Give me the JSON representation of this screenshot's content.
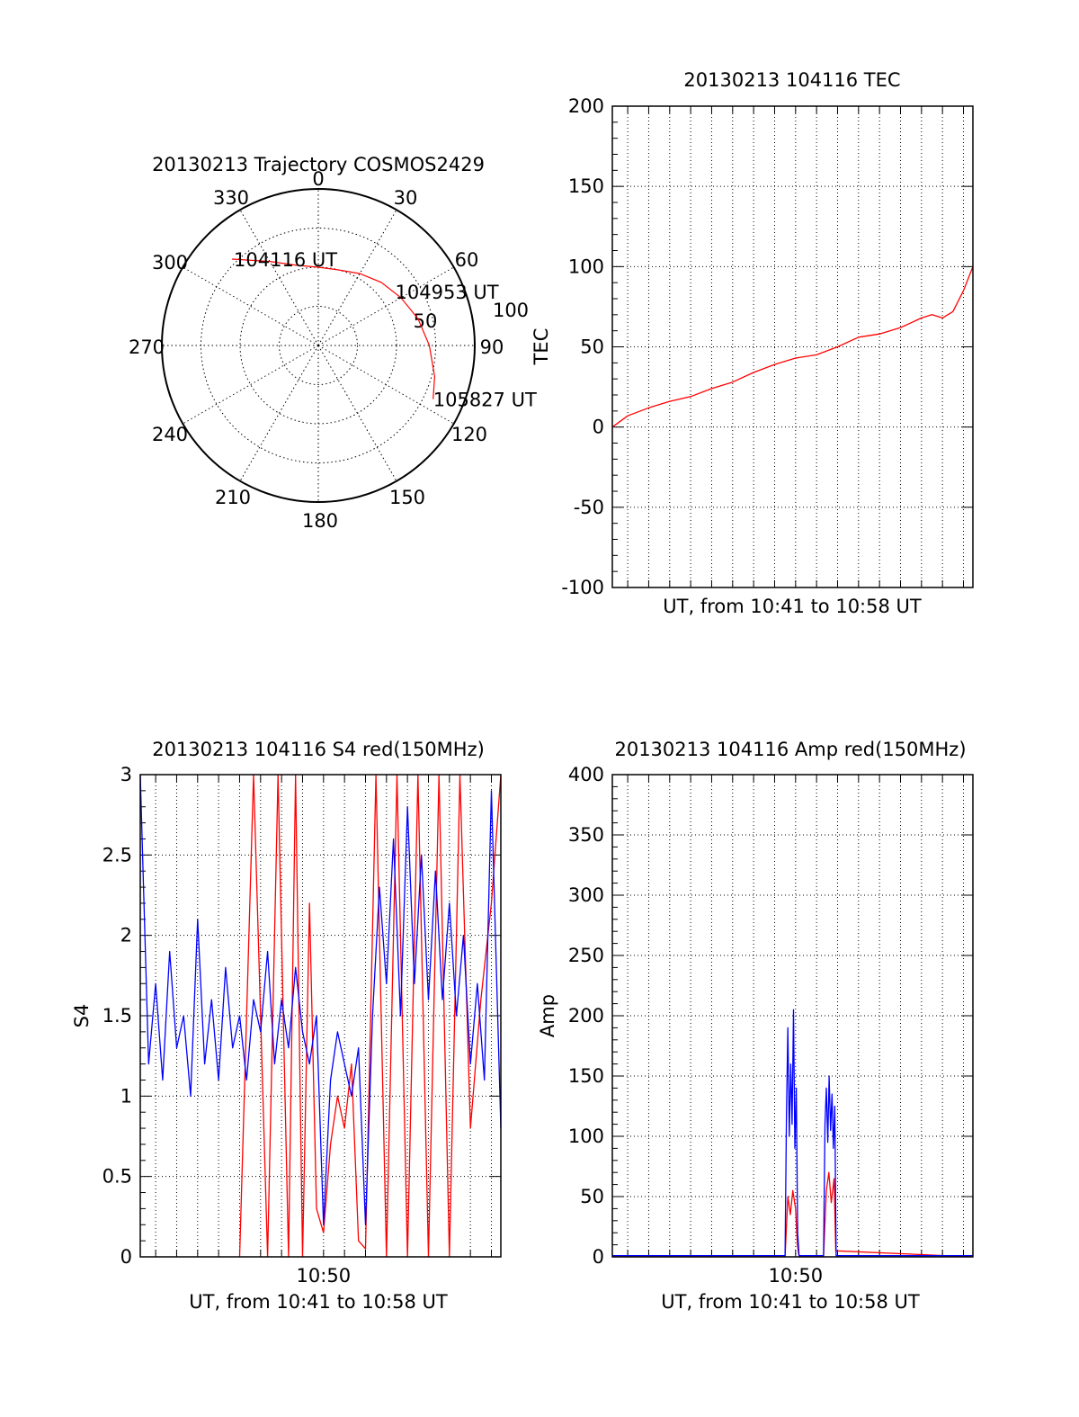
{
  "colors": {
    "red": "#ff0000",
    "blue": "#0000ff",
    "axis": "#000000",
    "grid": "#000000"
  },
  "chart_data": [
    {
      "id": "trajectory",
      "type": "polar",
      "title": "20130213 Trajectory COSMOS2429",
      "angle_labels": [
        "0",
        "30",
        "60",
        "90",
        "120",
        "150",
        "180",
        "210",
        "240",
        "270",
        "300",
        "330"
      ],
      "radius_labels": [
        "50",
        "100"
      ],
      "rlim": [
        0,
        100
      ],
      "grid": true,
      "track": {
        "color": "red",
        "points": [
          {
            "az": 315,
            "r": 78
          },
          {
            "az": 330,
            "r": 62
          },
          {
            "az": 345,
            "r": 53
          },
          {
            "az": 0,
            "r": 50
          },
          {
            "az": 15,
            "r": 50
          },
          {
            "az": 30,
            "r": 53
          },
          {
            "az": 45,
            "r": 57
          },
          {
            "az": 60,
            "r": 61
          },
          {
            "az": 75,
            "r": 66
          },
          {
            "az": 90,
            "r": 71
          },
          {
            "az": 105,
            "r": 77
          },
          {
            "az": 115,
            "r": 81
          }
        ]
      },
      "annotations": [
        {
          "text": "104116 UT",
          "az": 315,
          "r": 78
        },
        {
          "text": "104953 UT",
          "az": 55,
          "r": 60
        },
        {
          "text": "105827 UT",
          "az": 115,
          "r": 81
        }
      ]
    },
    {
      "id": "tec",
      "type": "line",
      "title": "20130213 104116 TEC",
      "xlabel": "UT, from 10:41 to 10:58 UT",
      "ylabel": "TEC",
      "ylim": [
        -100,
        200
      ],
      "yticks": [
        "-100",
        "-50",
        "0",
        "50",
        "100",
        "150",
        "200"
      ],
      "xlim": [
        "10:41:16",
        "10:58:27"
      ],
      "xticks": [],
      "grid": true,
      "series": [
        {
          "color": "red",
          "x": [
            "10:41:16",
            "10:42:00",
            "10:43:00",
            "10:44:00",
            "10:45:00",
            "10:46:00",
            "10:47:00",
            "10:48:00",
            "10:49:00",
            "10:50:00",
            "10:51:00",
            "10:52:00",
            "10:53:00",
            "10:54:00",
            "10:55:00",
            "10:55:30",
            "10:56:00",
            "10:56:30",
            "10:57:00",
            "10:57:30",
            "10:58:00",
            "10:58:27"
          ],
          "y": [
            0,
            7,
            12,
            16,
            19,
            24,
            28,
            34,
            39,
            43,
            45,
            50,
            56,
            58,
            62,
            65,
            68,
            70,
            68,
            72,
            85,
            100
          ]
        }
      ]
    },
    {
      "id": "s4",
      "type": "line",
      "title": "20130213 104116 S4 red(150MHz)",
      "xlabel": "UT, from 10:41 to 10:58 UT",
      "ylabel": "S4",
      "ylim": [
        0,
        3
      ],
      "yticks": [
        "0",
        "0.5",
        "1",
        "1.5",
        "2",
        "2.5",
        "3"
      ],
      "xlim": [
        "10:41:16",
        "10:58:27"
      ],
      "xticks": [
        {
          "label": "10:50",
          "x": "10:50:00"
        }
      ],
      "grid": true,
      "series": [
        {
          "color": "red",
          "x": [
            "10:46:00",
            "10:46:40",
            "10:47:20",
            "10:47:50",
            "10:48:20",
            "10:48:40",
            "10:49:00",
            "10:49:20",
            "10:49:40",
            "10:50:00",
            "10:50:20",
            "10:50:40",
            "10:51:00",
            "10:51:20",
            "10:51:40",
            "10:52:00",
            "10:52:30",
            "10:53:00",
            "10:53:30",
            "10:54:00",
            "10:54:30",
            "10:55:00",
            "10:55:30",
            "10:56:00",
            "10:56:30",
            "10:57:00",
            "10:57:30",
            "10:58:00",
            "10:58:27"
          ],
          "y": [
            0.0,
            3.0,
            0.0,
            3.0,
            0.0,
            3.0,
            0.0,
            2.2,
            0.3,
            0.15,
            0.7,
            1.0,
            0.8,
            1.2,
            0.1,
            0.05,
            3.0,
            0.0,
            3.0,
            0.0,
            3.0,
            0.0,
            3.0,
            0.0,
            3.0,
            0.8,
            1.6,
            2.2,
            3.0
          ]
        },
        {
          "color": "blue",
          "x": [
            "10:41:16",
            "10:41:40",
            "10:42:00",
            "10:42:20",
            "10:42:40",
            "10:43:00",
            "10:43:20",
            "10:43:40",
            "10:44:00",
            "10:44:20",
            "10:44:40",
            "10:45:00",
            "10:45:20",
            "10:45:40",
            "10:46:00",
            "10:46:20",
            "10:46:40",
            "10:47:00",
            "10:47:20",
            "10:47:40",
            "10:48:00",
            "10:48:20",
            "10:48:40",
            "10:49:00",
            "10:49:20",
            "10:49:40",
            "10:50:00",
            "10:50:20",
            "10:50:40",
            "10:51:00",
            "10:51:20",
            "10:51:40",
            "10:52:00",
            "10:52:20",
            "10:52:40",
            "10:53:00",
            "10:53:20",
            "10:53:40",
            "10:54:00",
            "10:54:20",
            "10:54:40",
            "10:55:00",
            "10:55:20",
            "10:55:40",
            "10:56:00",
            "10:56:20",
            "10:56:40",
            "10:57:00",
            "10:57:20",
            "10:57:40",
            "10:58:00",
            "10:58:27"
          ],
          "y": [
            3.0,
            1.2,
            1.7,
            1.1,
            1.9,
            1.3,
            1.5,
            1.0,
            2.1,
            1.2,
            1.6,
            1.1,
            1.8,
            1.3,
            1.5,
            1.1,
            1.6,
            1.4,
            1.9,
            1.2,
            1.6,
            1.3,
            1.8,
            1.4,
            1.2,
            1.5,
            0.2,
            1.1,
            1.4,
            1.2,
            1.0,
            1.3,
            0.2,
            1.5,
            2.3,
            1.7,
            2.6,
            1.5,
            2.8,
            1.7,
            2.5,
            1.6,
            2.4,
            1.6,
            2.2,
            1.5,
            2.0,
            1.2,
            1.7,
            1.1,
            2.9,
            0.8
          ]
        }
      ]
    },
    {
      "id": "amp",
      "type": "line",
      "title": "20130213 104116 Amp red(150MHz)",
      "xlabel": "UT, from 10:41 to 10:58 UT",
      "ylabel": "Amp",
      "ylim": [
        0,
        400
      ],
      "yticks": [
        "0",
        "50",
        "100",
        "150",
        "200",
        "250",
        "300",
        "350",
        "400"
      ],
      "xlim": [
        "10:41:16",
        "10:58:27"
      ],
      "xticks": [
        {
          "label": "10:50",
          "x": "10:50:00"
        }
      ],
      "grid": true,
      "series": [
        {
          "color": "red",
          "x": [
            "10:41:16",
            "10:49:30",
            "10:49:38",
            "10:49:45",
            "10:49:52",
            "10:50:00",
            "10:50:05",
            "10:50:10",
            "10:51:20",
            "10:51:28",
            "10:51:35",
            "10:51:42",
            "10:51:50",
            "10:51:55",
            "10:58:27"
          ],
          "y": [
            0,
            0,
            50,
            35,
            55,
            40,
            10,
            0,
            0,
            55,
            70,
            45,
            65,
            5,
            0
          ]
        },
        {
          "color": "blue",
          "x": [
            "10:41:16",
            "10:49:30",
            "10:49:34",
            "10:49:38",
            "10:49:42",
            "10:49:46",
            "10:49:50",
            "10:49:54",
            "10:49:58",
            "10:50:02",
            "10:50:06",
            "10:50:10",
            "10:51:20",
            "10:51:24",
            "10:51:28",
            "10:51:32",
            "10:51:36",
            "10:51:40",
            "10:51:44",
            "10:51:48",
            "10:51:52",
            "10:51:56",
            "10:58:27"
          ],
          "y": [
            1,
            1,
            120,
            190,
            100,
            160,
            110,
            205,
            90,
            140,
            20,
            1,
            1,
            110,
            140,
            95,
            150,
            105,
            135,
            90,
            125,
            1,
            1
          ]
        }
      ]
    }
  ]
}
